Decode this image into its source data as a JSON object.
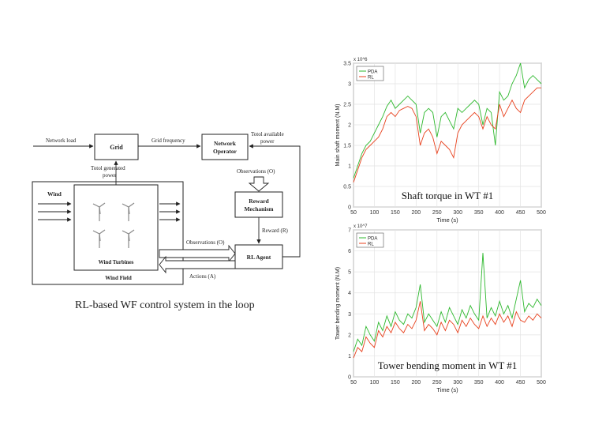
{
  "diagram": {
    "nodes": {
      "grid": "Grid",
      "operator_l1": "Network",
      "operator_l2": "Operator",
      "reward_l1": "Reward",
      "reward_l2": "Mechanism",
      "agent": "RL Agent",
      "wind_turbines": "Wind Turbines",
      "wind_field": "Wind Field"
    },
    "edges": {
      "network_load": "Network load",
      "grid_frequency": "Grid frequency",
      "available_l1": "Totol available",
      "available_l2": "power",
      "generated_l1": "Totol generated",
      "generated_l2": "power",
      "observations_top": "Observations (O)",
      "reward": "Reward (R)",
      "observations_mid": "Observations (O)",
      "actions": "Actions (A)",
      "wind": "Wind"
    },
    "caption": "RL-based WF control system in the loop"
  },
  "chart_data": [
    {
      "type": "line",
      "title": "Shaft torque in WT #1",
      "xlabel": "Time (s)",
      "ylabel": "Main shaft moment (N.M)",
      "exponent": "x 10^6",
      "xlim": [
        50,
        500
      ],
      "ylim": [
        0,
        3.5
      ],
      "xticks": [
        "50",
        "100",
        "150",
        "200",
        "250",
        "300",
        "350",
        "400",
        "450",
        "500"
      ],
      "yticks": [
        "0",
        "0.5",
        "1",
        "1.5",
        "2",
        "2.5",
        "3",
        "3.5"
      ],
      "grid": true,
      "legend": "top-left",
      "series": [
        {
          "name": "PDA",
          "color": "#2db82d",
          "x": [
            50,
            60,
            70,
            80,
            90,
            100,
            110,
            120,
            130,
            140,
            150,
            160,
            170,
            180,
            190,
            200,
            210,
            220,
            230,
            240,
            250,
            260,
            270,
            280,
            290,
            300,
            310,
            320,
            330,
            340,
            350,
            360,
            370,
            380,
            390,
            400,
            410,
            420,
            430,
            440,
            450,
            460,
            470,
            480,
            490,
            500
          ],
          "y": [
            0.7,
            1.0,
            1.3,
            1.5,
            1.6,
            1.8,
            2.0,
            2.2,
            2.45,
            2.6,
            2.4,
            2.5,
            2.6,
            2.7,
            2.6,
            2.5,
            1.8,
            2.3,
            2.4,
            2.3,
            1.7,
            2.2,
            2.3,
            2.1,
            1.9,
            2.4,
            2.3,
            2.4,
            2.5,
            2.6,
            2.5,
            2.0,
            2.4,
            2.3,
            1.5,
            2.8,
            2.6,
            2.7,
            3.0,
            3.2,
            3.5,
            2.9,
            3.1,
            3.2,
            3.1,
            3.0
          ]
        },
        {
          "name": "RL",
          "color": "#e8401c",
          "x": [
            50,
            60,
            70,
            80,
            90,
            100,
            110,
            120,
            130,
            140,
            150,
            160,
            170,
            180,
            190,
            200,
            210,
            220,
            230,
            240,
            250,
            260,
            270,
            280,
            290,
            300,
            310,
            320,
            330,
            340,
            350,
            360,
            370,
            380,
            390,
            400,
            410,
            420,
            430,
            440,
            450,
            460,
            470,
            480,
            490,
            500
          ],
          "y": [
            0.6,
            0.9,
            1.2,
            1.4,
            1.5,
            1.6,
            1.7,
            1.9,
            2.2,
            2.3,
            2.2,
            2.35,
            2.4,
            2.45,
            2.4,
            2.2,
            1.5,
            1.8,
            1.9,
            1.7,
            1.3,
            1.6,
            1.5,
            1.4,
            1.2,
            1.8,
            2.0,
            2.1,
            2.2,
            2.3,
            2.2,
            1.9,
            2.2,
            2.0,
            1.9,
            2.5,
            2.2,
            2.4,
            2.6,
            2.4,
            2.3,
            2.6,
            2.7,
            2.8,
            2.9,
            2.9
          ]
        }
      ]
    },
    {
      "type": "line",
      "title": "Tower bending moment in WT #1",
      "xlabel": "Time (s)",
      "ylabel": "Tower bending moment (N.M)",
      "exponent": "x 10^7",
      "xlim": [
        50,
        500
      ],
      "ylim": [
        0,
        7
      ],
      "xticks": [
        "50",
        "100",
        "150",
        "200",
        "250",
        "300",
        "350",
        "400",
        "450",
        "500"
      ],
      "yticks": [
        "0",
        "1",
        "2",
        "3",
        "4",
        "5",
        "6",
        "7"
      ],
      "grid": true,
      "legend": "top-left",
      "series": [
        {
          "name": "PDA",
          "color": "#2db82d",
          "x": [
            50,
            60,
            70,
            80,
            90,
            100,
            110,
            120,
            130,
            140,
            150,
            160,
            170,
            180,
            190,
            200,
            210,
            220,
            230,
            240,
            250,
            260,
            270,
            280,
            290,
            300,
            310,
            320,
            330,
            340,
            350,
            360,
            370,
            380,
            390,
            400,
            410,
            420,
            430,
            440,
            450,
            460,
            470,
            480,
            490,
            500
          ],
          "y": [
            1.2,
            1.8,
            1.5,
            2.4,
            2.0,
            1.7,
            2.6,
            2.2,
            2.9,
            2.4,
            3.1,
            2.7,
            2.5,
            3.0,
            2.8,
            3.3,
            4.4,
            2.6,
            3.0,
            2.7,
            2.4,
            3.1,
            2.6,
            3.3,
            2.9,
            2.5,
            3.2,
            2.8,
            3.4,
            3.0,
            2.7,
            5.9,
            2.8,
            3.3,
            2.9,
            3.6,
            3.0,
            3.4,
            2.8,
            3.7,
            4.6,
            3.1,
            3.5,
            3.3,
            3.7,
            3.4
          ]
        },
        {
          "name": "RL",
          "color": "#e8401c",
          "x": [
            50,
            60,
            70,
            80,
            90,
            100,
            110,
            120,
            130,
            140,
            150,
            160,
            170,
            180,
            190,
            200,
            210,
            220,
            230,
            240,
            250,
            260,
            270,
            280,
            290,
            300,
            310,
            320,
            330,
            340,
            350,
            360,
            370,
            380,
            390,
            400,
            410,
            420,
            430,
            440,
            450,
            460,
            470,
            480,
            490,
            500
          ],
          "y": [
            0.9,
            1.4,
            1.2,
            1.9,
            1.6,
            1.4,
            2.2,
            1.9,
            2.4,
            2.1,
            2.6,
            2.3,
            2.1,
            2.5,
            2.3,
            2.7,
            3.6,
            2.2,
            2.5,
            2.3,
            2.0,
            2.6,
            2.2,
            2.7,
            2.5,
            2.1,
            2.7,
            2.4,
            2.8,
            2.5,
            2.3,
            2.9,
            2.4,
            2.8,
            2.5,
            3.0,
            2.6,
            2.9,
            2.4,
            3.1,
            2.7,
            2.6,
            2.9,
            2.7,
            3.0,
            2.8
          ]
        }
      ]
    }
  ]
}
